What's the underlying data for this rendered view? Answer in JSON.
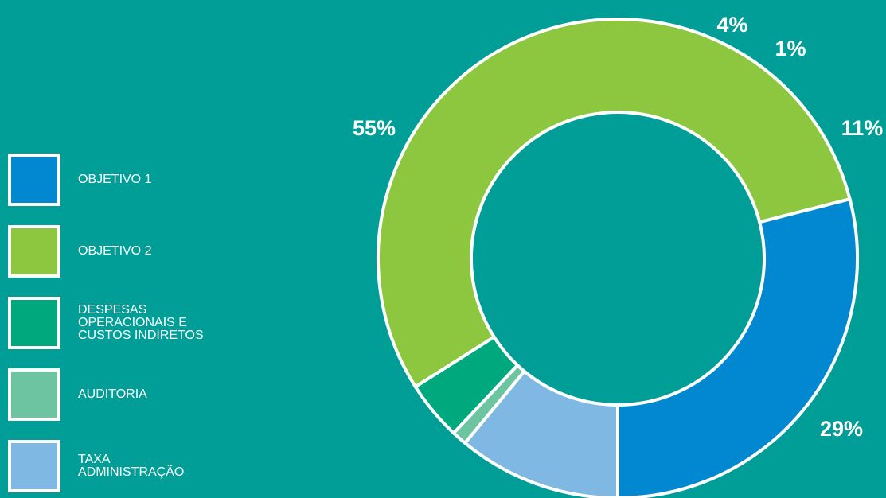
{
  "chart_data": {
    "type": "pie",
    "donut": true,
    "legend_position": "left",
    "categories": [
      "OBJETIVO 1",
      "OBJETIVO 2",
      "DESPESAS OPERACIONAIS E CUSTOS INDIRETOS",
      "AUDITORIA",
      "TAXA ADMINISTRAÇÃO"
    ],
    "values": [
      29,
      55,
      4,
      1,
      11
    ],
    "value_labels": [
      "29%",
      "55%",
      "4%",
      "1%",
      "11%"
    ],
    "colors": [
      "#0288d1",
      "#8dc63f",
      "#00a87e",
      "#6cc4a0",
      "#7fb8e3"
    ]
  },
  "legend": [
    {
      "label": "OBJETIVO 1",
      "color": "#0288d1"
    },
    {
      "label": "OBJETIVO 2",
      "color": "#8dc63f"
    },
    {
      "label": "DESPESAS\nOPERACIONAIS E\nCUSTOS INDIRETOS",
      "color": "#00a87e"
    },
    {
      "label": "AUDITORIA",
      "color": "#6cc4a0"
    },
    {
      "label": "TAXA\nADMINISTRAÇÃO",
      "color": "#7fb8e3"
    }
  ]
}
